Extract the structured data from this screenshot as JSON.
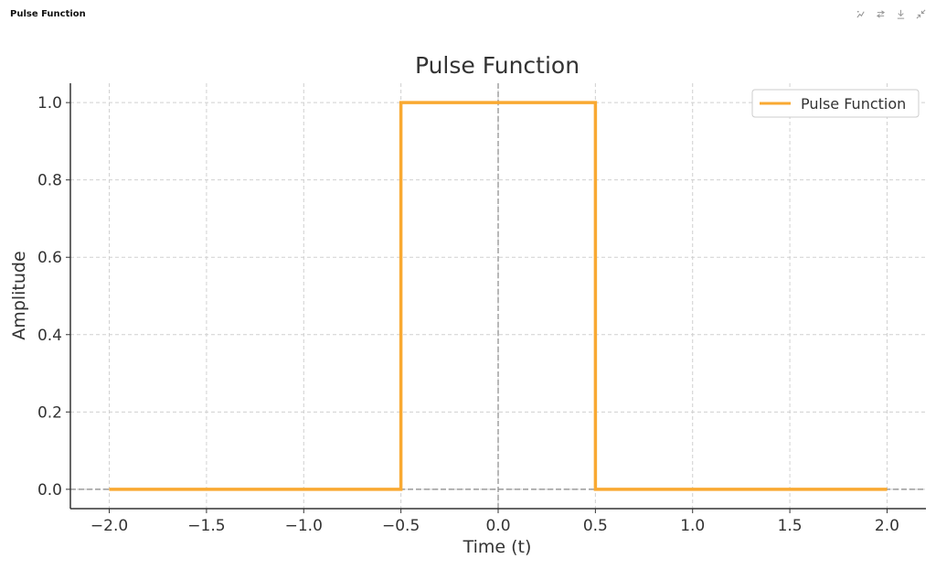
{
  "window": {
    "title": "Pulse Function"
  },
  "toolbar": {
    "icons": [
      "interactive-chart-icon",
      "switch-icon",
      "download-icon",
      "collapse-icon"
    ]
  },
  "chart_data": {
    "type": "line",
    "title": "Pulse Function",
    "xlabel": "Time (t)",
    "ylabel": "Amplitude",
    "xlim": [
      -2.2,
      2.2
    ],
    "ylim": [
      -0.05,
      1.05
    ],
    "xticks": [
      -2.0,
      -1.5,
      -1.0,
      -0.5,
      0.0,
      0.5,
      1.0,
      1.5,
      2.0
    ],
    "xtick_labels": [
      "−2.0",
      "−1.5",
      "−1.0",
      "−0.5",
      "0.0",
      "0.5",
      "1.0",
      "1.5",
      "2.0"
    ],
    "yticks": [
      0.0,
      0.2,
      0.4,
      0.6,
      0.8,
      1.0
    ],
    "ytick_labels": [
      "0.0",
      "0.2",
      "0.4",
      "0.6",
      "0.8",
      "1.0"
    ],
    "grid": true,
    "legend_position": "top-right",
    "reference_lines": {
      "x0": true,
      "y0": true
    },
    "series": [
      {
        "name": "Pulse Function",
        "color": "#F9A932",
        "x": [
          -2.0,
          -0.5,
          -0.5,
          0.5,
          0.5,
          2.0
        ],
        "y": [
          0.0,
          0.0,
          1.0,
          1.0,
          0.0,
          0.0
        ]
      }
    ]
  }
}
